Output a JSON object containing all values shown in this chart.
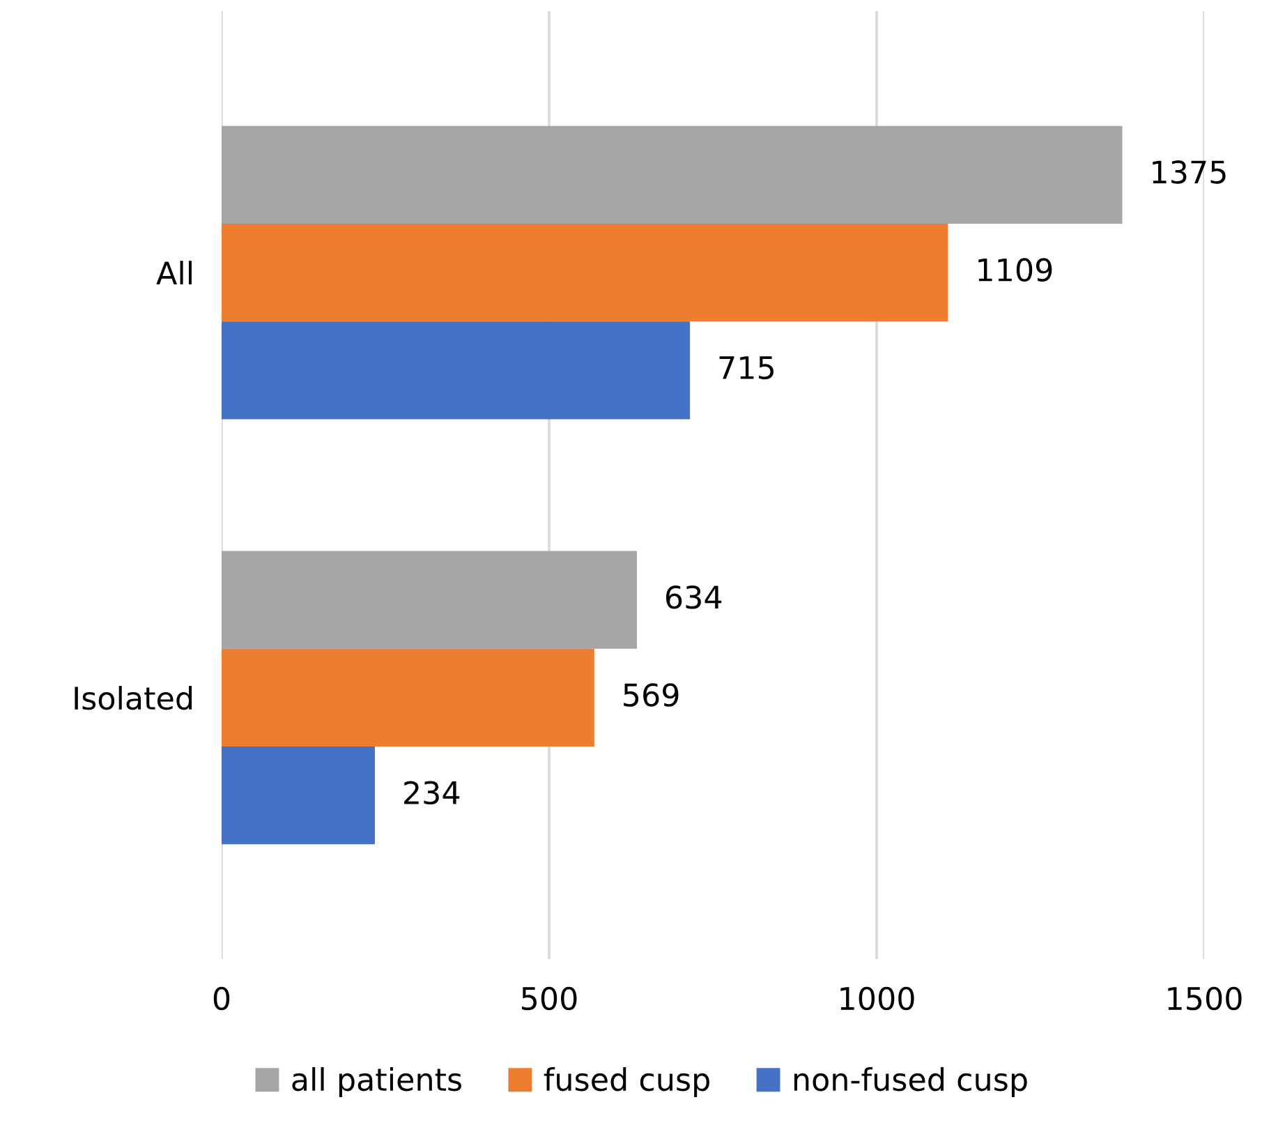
{
  "chart_data": {
    "type": "bar",
    "orientation": "horizontal",
    "categories": [
      "All",
      "Isolated"
    ],
    "series": [
      {
        "name": "all patients",
        "color": "#a5a5a5",
        "values": [
          1375,
          634
        ]
      },
      {
        "name": "fused cusp",
        "color": "#ed7d31",
        "values": [
          1109,
          569
        ]
      },
      {
        "name": "non-fused cusp",
        "color": "#4472c4",
        "values": [
          715,
          234
        ]
      }
    ],
    "xlim": [
      0,
      1500
    ],
    "xticks": [
      0,
      500,
      1000,
      1500
    ],
    "grid": "x",
    "legend": "bottom",
    "data_labels": true
  }
}
